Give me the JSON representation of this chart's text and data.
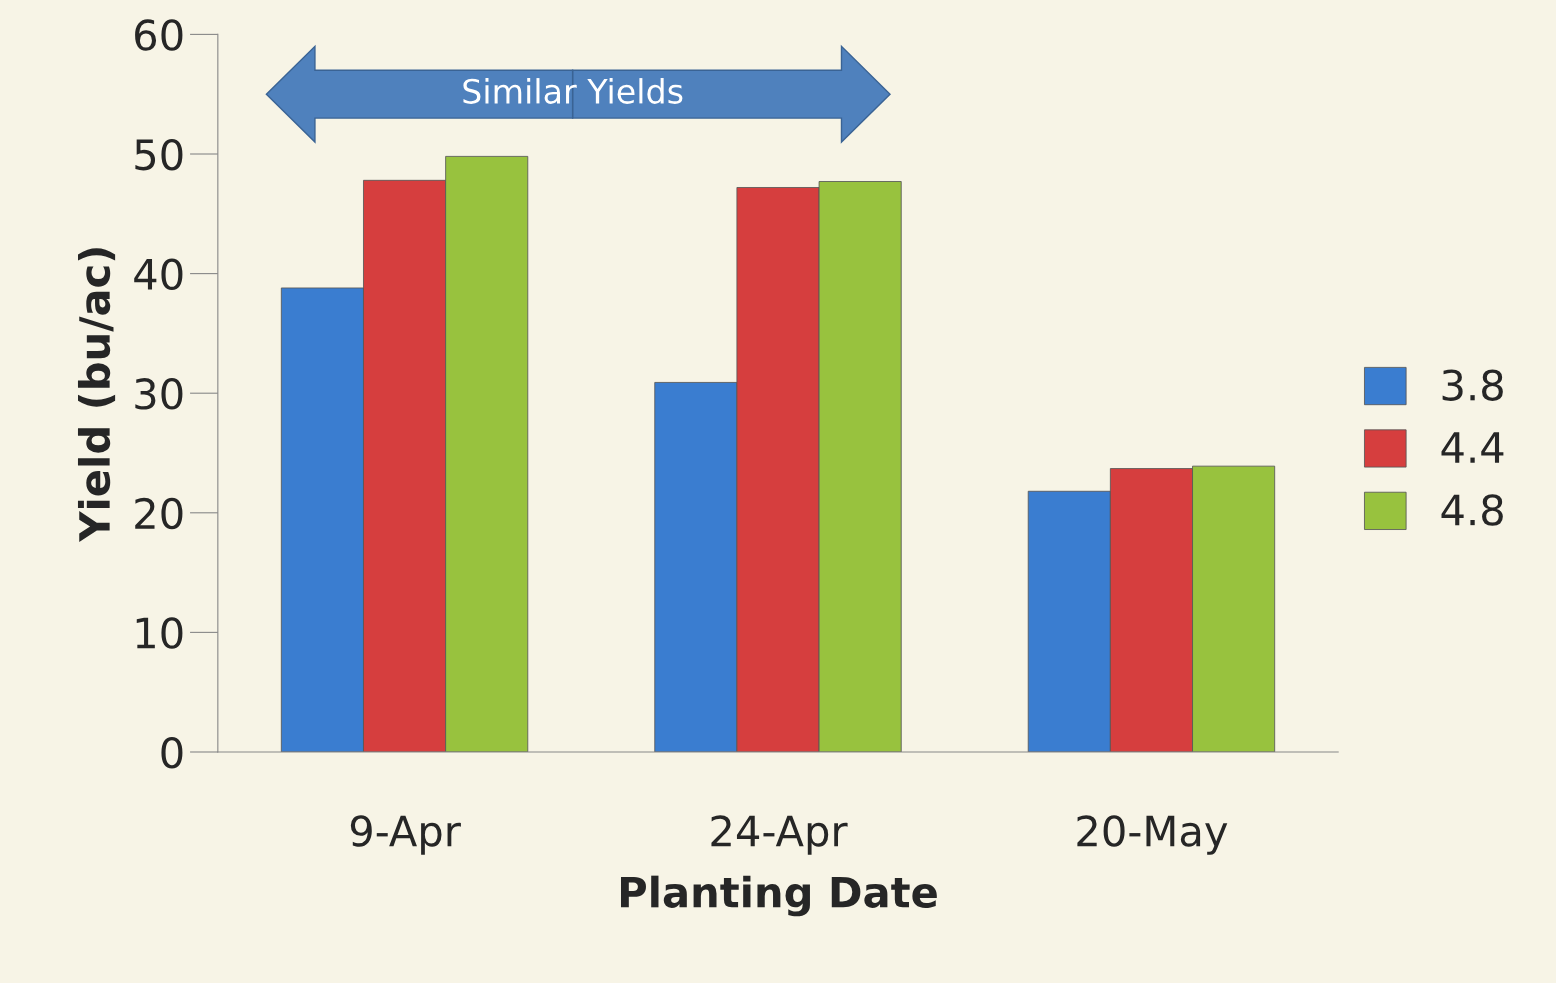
{
  "chart_data": {
    "type": "bar",
    "xlabel": "Planting Date",
    "ylabel": "Yield (bu/ac)",
    "categories": [
      "9-Apr",
      "24-Apr",
      "20-May"
    ],
    "series": [
      {
        "name": "3.8",
        "color": "#3a7dd0",
        "values": [
          38.8,
          30.9,
          21.8
        ]
      },
      {
        "name": "4.4",
        "color": "#d63e3e",
        "values": [
          47.8,
          47.2,
          23.7
        ]
      },
      {
        "name": "4.8",
        "color": "#98c23e",
        "values": [
          49.8,
          47.7,
          23.9
        ]
      }
    ],
    "ylim": [
      0,
      60
    ],
    "yticks": [
      0,
      10,
      20,
      30,
      40,
      50,
      60
    ],
    "annotations": [
      "Similar Yields"
    ],
    "grid": false,
    "legend": "right"
  }
}
